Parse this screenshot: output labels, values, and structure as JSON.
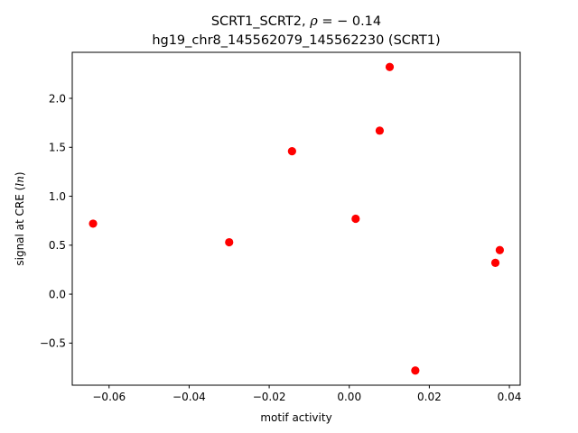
{
  "chart_data": {
    "type": "scatter",
    "title_line1_prefix": "SCRT1_SCRT2, ",
    "title_rho_symbol": "ρ",
    "title_rho_value": " = − 0.14",
    "title_line2": "hg19_chr8_145562079_145562230 (SCRT1)",
    "xlabel": "motif activity",
    "ylabel_prefix": "signal at CRE (",
    "ylabel_italic": "ln",
    "ylabel_suffix": ")",
    "xlim": [
      -0.0692,
      0.0427
    ],
    "ylim": [
      -0.93,
      2.47
    ],
    "x_ticks": [
      -0.06,
      -0.04,
      -0.02,
      0.0,
      0.02,
      0.04
    ],
    "x_tick_labels": [
      "−0.06",
      "−0.04",
      "−0.02",
      "0.00",
      "0.02",
      "0.04"
    ],
    "y_ticks": [
      -0.5,
      0.0,
      0.5,
      1.0,
      1.5,
      2.0
    ],
    "y_tick_labels": [
      "−0.5",
      "0.0",
      "0.5",
      "1.0",
      "1.5",
      "2.0"
    ],
    "grid": false,
    "marker_color": "#ff0000",
    "points": [
      {
        "x": -0.064,
        "y": 0.72
      },
      {
        "x": -0.03,
        "y": 0.53
      },
      {
        "x": -0.0143,
        "y": 1.46
      },
      {
        "x": 0.0016,
        "y": 0.77
      },
      {
        "x": 0.0076,
        "y": 1.67
      },
      {
        "x": 0.0101,
        "y": 2.32
      },
      {
        "x": 0.0165,
        "y": -0.78
      },
      {
        "x": 0.0365,
        "y": 0.32
      },
      {
        "x": 0.0376,
        "y": 0.45
      }
    ]
  }
}
